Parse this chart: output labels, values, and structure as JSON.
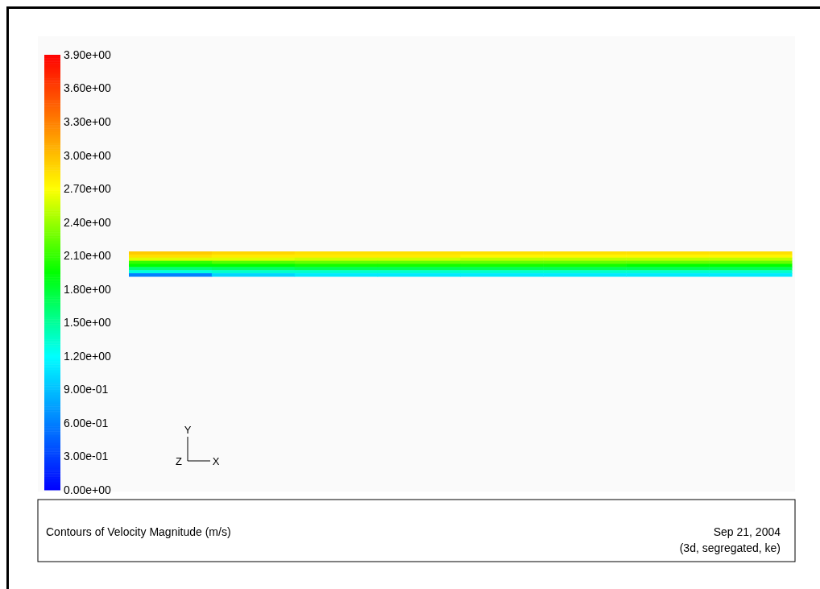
{
  "chart_data": {
    "type": "heatmap",
    "title": "Contours of Velocity Magnitude (m/s)",
    "categories": [
      null,
      null,
      null,
      null,
      null,
      null,
      null,
      null
    ],
    "y_categories": [
      null,
      null,
      null,
      null,
      null,
      null,
      null,
      null
    ],
    "cells": [
      [
        2.95,
        2.9,
        2.85,
        2.85,
        2.85,
        2.85,
        2.85,
        2.85
      ],
      [
        2.85,
        2.8,
        2.8,
        2.8,
        2.75,
        2.75,
        2.75,
        2.75
      ],
      [
        2.6,
        2.6,
        2.55,
        2.55,
        2.5,
        2.5,
        2.5,
        2.5
      ],
      [
        2.1,
        2.2,
        2.25,
        2.25,
        2.25,
        2.25,
        2.25,
        2.25
      ],
      [
        1.95,
        1.95,
        2.0,
        2.0,
        2.0,
        2.0,
        1.95,
        1.95
      ],
      [
        1.6,
        1.65,
        1.7,
        1.7,
        1.7,
        1.7,
        1.7,
        1.7
      ],
      [
        1.3,
        1.35,
        1.35,
        1.35,
        1.35,
        1.35,
        1.35,
        1.35
      ],
      [
        0.6,
        1.0,
        1.1,
        1.1,
        1.1,
        1.1,
        1.1,
        1.1
      ]
    ],
    "clim": [
      0,
      3.9
    ],
    "cticks": [
      {
        "value": 0,
        "label": "0.00e+00"
      },
      {
        "value": 0.3,
        "label": "3.00e-01"
      },
      {
        "value": 0.6,
        "label": "6.00e-01"
      },
      {
        "value": 0.9,
        "label": "9.00e-01"
      },
      {
        "value": 1.2,
        "label": "1.20e+00"
      },
      {
        "value": 1.5,
        "label": "1.50e+00"
      },
      {
        "value": 1.8,
        "label": "1.80e+00"
      },
      {
        "value": 2.1,
        "label": "2.10e+00"
      },
      {
        "value": 2.4,
        "label": "2.40e+00"
      },
      {
        "value": 2.7,
        "label": "2.70e+00"
      },
      {
        "value": 3.0,
        "label": "3.00e+00"
      },
      {
        "value": 3.3,
        "label": "3.30e+00"
      },
      {
        "value": 3.6,
        "label": "3.60e+00"
      },
      {
        "value": 3.9,
        "label": "3.90e+00"
      }
    ],
    "annotations": [
      "Sep 21, 2004",
      "(3d, segregated, ke)",
      "Y",
      "Z",
      "X"
    ]
  }
}
